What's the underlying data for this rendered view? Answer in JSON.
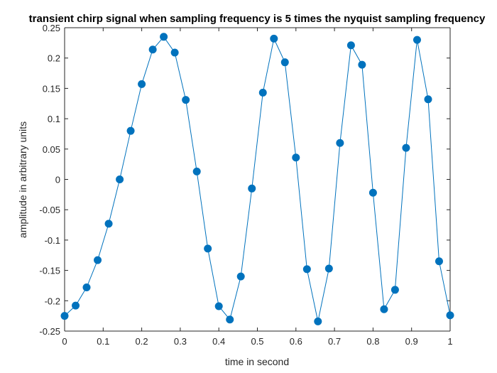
{
  "chart_data": {
    "type": "line",
    "title": "transient chirp signal when sampling frequency is 5 times the nyquist sampling frequency",
    "xlabel": "time in second",
    "ylabel": "amplitude in arbitrary units",
    "xlim": [
      0,
      1
    ],
    "ylim": [
      -0.25,
      0.25
    ],
    "xticks": [
      "0",
      "0.1",
      "0.2",
      "0.3",
      "0.4",
      "0.5",
      "0.6",
      "0.7",
      "0.8",
      "0.9",
      "1"
    ],
    "xtick_values": [
      0,
      0.1,
      0.2,
      0.3,
      0.4,
      0.5,
      0.6,
      0.7,
      0.8,
      0.9,
      1
    ],
    "yticks": [
      "0.25",
      "0.2",
      "0.15",
      "0.1",
      "0.05",
      "0",
      "-0.05",
      "-0.1",
      "-0.15",
      "-0.2",
      "-0.25"
    ],
    "ytick_values": [
      0.25,
      0.2,
      0.15,
      0.1,
      0.05,
      0,
      -0.05,
      -0.1,
      -0.15,
      -0.2,
      -0.25
    ],
    "grid": false,
    "line_color": "#0072BD",
    "series": [
      {
        "x": [
          0,
          0.0286,
          0.0571,
          0.0857,
          0.1143,
          0.1429,
          0.1714,
          0.2,
          0.2286,
          0.2571,
          0.2857,
          0.3143,
          0.3429,
          0.3714,
          0.4,
          0.4286,
          0.4571,
          0.4857,
          0.5143,
          0.5429,
          0.5714,
          0.6,
          0.6286,
          0.6571,
          0.6857,
          0.7143,
          0.7429,
          0.7714,
          0.8,
          0.8286,
          0.8571,
          0.8857,
          0.9143,
          0.9429,
          0.9714,
          1
        ],
        "y": [
          -0.225,
          -0.208,
          -0.178,
          -0.133,
          -0.073,
          0.0,
          0.08,
          0.157,
          0.214,
          0.235,
          0.209,
          0.131,
          0.013,
          -0.114,
          -0.209,
          -0.231,
          -0.16,
          -0.015,
          0.143,
          0.232,
          0.193,
          0.036,
          -0.148,
          -0.234,
          -0.147,
          0.06,
          0.221,
          0.189,
          -0.022,
          -0.214,
          -0.182,
          0.052,
          0.23,
          0.132,
          -0.135,
          -0.224
        ]
      }
    ]
  }
}
